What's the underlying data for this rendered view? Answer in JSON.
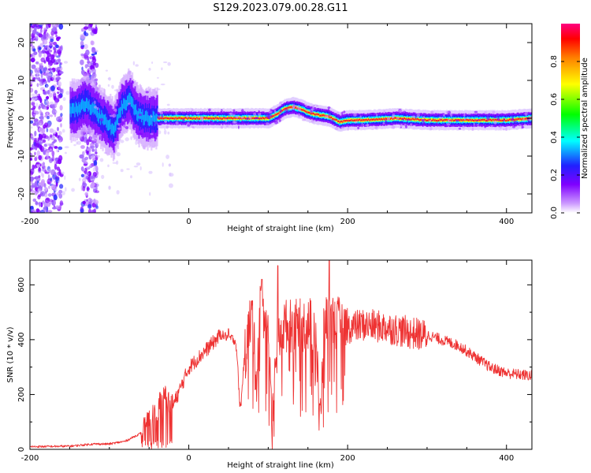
{
  "figure_title": "S129.2023.079.00.28.G11",
  "chart_data": [
    {
      "type": "heatmap",
      "title": "S129.2023.079.00.28.G11",
      "xlabel": "Height of straight line (km)",
      "ylabel": "Frequency (Hz)",
      "xlim": [
        -200,
        432
      ],
      "ylim": [
        -25,
        25
      ],
      "x_ticks": [
        -200,
        0,
        200,
        400
      ],
      "y_ticks": [
        -20,
        -10,
        0,
        10,
        20
      ],
      "colorbar": {
        "label": "Normalized spectral amplitude",
        "range": [
          0.0,
          1.0
        ],
        "ticks": [
          0.0,
          0.2,
          0.4,
          0.6,
          0.8
        ],
        "colormap": [
          "#ffffff",
          "#cc99ff",
          "#7f00ff",
          "#2020ff",
          "#00ffff",
          "#00ff00",
          "#ffff00",
          "#ff7f00",
          "#ff0000",
          "#ff0080"
        ]
      },
      "ridge_frequency": {
        "height_km": [
          -145,
          -130,
          -110,
          -95,
          -85,
          -75,
          -65,
          -55,
          -45,
          -30,
          0,
          50,
          100,
          110,
          120,
          130,
          140,
          150,
          160,
          175,
          190,
          200,
          220,
          260,
          300,
          350,
          400,
          432
        ],
        "frequency_hz": [
          2,
          4,
          0,
          -3,
          3,
          5,
          1,
          0,
          0,
          0,
          0,
          0,
          0,
          1,
          2.5,
          3,
          2.5,
          1.5,
          1,
          0.5,
          -1,
          -0.5,
          -0.5,
          0,
          -0.5,
          -0.5,
          -0.5,
          0
        ]
      },
      "noise_bands_km": [
        [
          -200,
          -160
        ],
        [
          -135,
          -115
        ]
      ]
    },
    {
      "type": "line",
      "xlabel": "Height of straight line (km)",
      "ylabel": "SNR (10 * v/v)",
      "xlim": [
        -200,
        432
      ],
      "ylim": [
        0,
        690
      ],
      "x_ticks": [
        -200,
        0,
        200,
        400
      ],
      "y_ticks": [
        0,
        200,
        400,
        600
      ],
      "color": "#ee3333",
      "envelope": {
        "x": [
          -200,
          -150,
          -120,
          -100,
          -80,
          -60,
          -40,
          -30,
          -20,
          0,
          20,
          40,
          50,
          60,
          70,
          80,
          90,
          100,
          110,
          120,
          140,
          160,
          180,
          200,
          220,
          250,
          280,
          300,
          320,
          340,
          360,
          380,
          400,
          432
        ],
        "y": [
          10,
          12,
          20,
          20,
          30,
          60,
          150,
          200,
          160,
          300,
          360,
          420,
          410,
          400,
          350,
          520,
          560,
          450,
          380,
          460,
          460,
          470,
          480,
          450,
          460,
          450,
          430,
          420,
          400,
          380,
          340,
          300,
          280,
          270
        ]
      },
      "dips": [
        {
          "x": 65,
          "y": 160
        },
        {
          "x": 105,
          "y": 100
        },
        {
          "x": 85,
          "y": 280
        },
        {
          "x": 165,
          "y": 110
        }
      ],
      "peaks": [
        {
          "x": 112,
          "y": 670
        },
        {
          "x": 177,
          "y": 690
        },
        {
          "x": 92,
          "y": 620
        },
        {
          "x": 50,
          "y": 440
        }
      ]
    }
  ]
}
